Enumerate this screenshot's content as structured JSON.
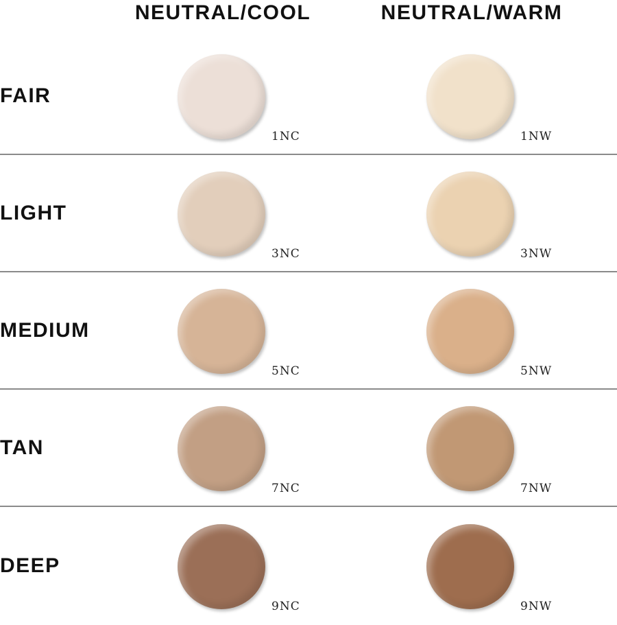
{
  "columns": [
    {
      "label": "NEUTRAL/COOL"
    },
    {
      "label": "NEUTRAL/WARM"
    }
  ],
  "rows": [
    {
      "label": "FAIR",
      "shades": [
        {
          "code": "1NC",
          "color": "#ecdfd7"
        },
        {
          "code": "1NW",
          "color": "#f1e1ca"
        }
      ]
    },
    {
      "label": "LIGHT",
      "shades": [
        {
          "code": "3NC",
          "color": "#e2cebb"
        },
        {
          "code": "3NW",
          "color": "#ebd2b1"
        }
      ]
    },
    {
      "label": "MEDIUM",
      "shades": [
        {
          "code": "5NC",
          "color": "#d6b497"
        },
        {
          "code": "5NW",
          "color": "#dab08a"
        }
      ]
    },
    {
      "label": "TAN",
      "shades": [
        {
          "code": "7NC",
          "color": "#c29f84"
        },
        {
          "code": "7NW",
          "color": "#c19874"
        }
      ]
    },
    {
      "label": "DEEP",
      "shades": [
        {
          "code": "9NC",
          "color": "#9b6f57"
        },
        {
          "code": "9NW",
          "color": "#9e6d4e"
        }
      ]
    }
  ]
}
